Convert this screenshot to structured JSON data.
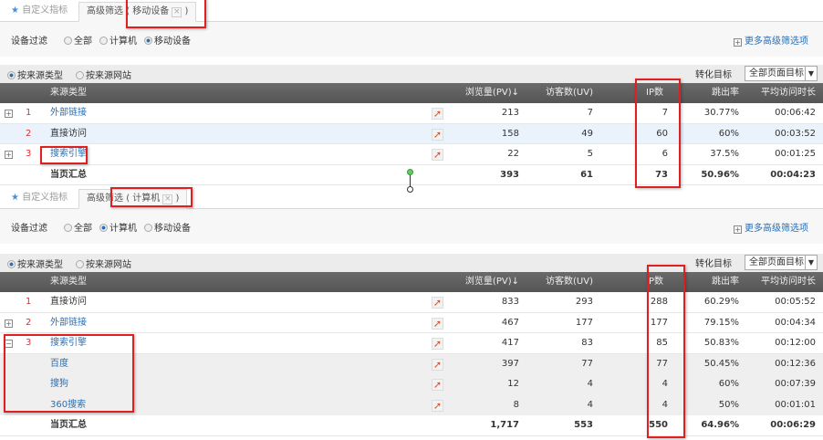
{
  "panels": [
    {
      "tabs": {
        "custom": "自定义指标",
        "advanced": "高级筛选",
        "paren_open": "(",
        "chip": "移动设备",
        "paren_close": ")"
      },
      "filter": {
        "label": "设备过滤",
        "options": [
          "全部",
          "计算机",
          "移动设备"
        ],
        "selected": 2,
        "more": "更多高级筛选项"
      },
      "source": {
        "options": [
          "按来源类型",
          "按来源网站"
        ],
        "selected": 0,
        "goal_label": "转化目标",
        "goal_value": "全部页面目标"
      },
      "headers": {
        "name": "来源类型",
        "pv": "浏览量(PV)",
        "uv": "访客数(UV)",
        "ip": "IP数",
        "bounce": "跳出率",
        "time": "平均访问时长"
      },
      "rows": [
        {
          "exp": "+",
          "rank": "1",
          "name": "外部链接",
          "link": true,
          "pv": "213",
          "uv": "7",
          "ip": "7",
          "bounce": "30.77%",
          "time": "00:06:42"
        },
        {
          "exp": "",
          "rank": "2",
          "name": "直接访问",
          "link": false,
          "pv": "158",
          "uv": "49",
          "ip": "60",
          "bounce": "60%",
          "time": "00:03:52",
          "hl": true
        },
        {
          "exp": "+",
          "rank": "3",
          "name": "搜索引擎",
          "link": true,
          "pv": "22",
          "uv": "5",
          "ip": "6",
          "bounce": "37.5%",
          "time": "00:01:25"
        }
      ],
      "total": {
        "name": "当页汇总",
        "pv": "393",
        "uv": "61",
        "ip": "73",
        "bounce": "50.96%",
        "time": "00:04:23"
      }
    },
    {
      "tabs": {
        "custom": "自定义指标",
        "advanced": "高级筛选",
        "paren_open": "(",
        "chip": "计算机",
        "paren_close": ")"
      },
      "filter": {
        "label": "设备过滤",
        "options": [
          "全部",
          "计算机",
          "移动设备"
        ],
        "selected": 1,
        "more": "更多高级筛选项"
      },
      "source": {
        "options": [
          "按来源类型",
          "按来源网站"
        ],
        "selected": 0,
        "goal_label": "转化目标",
        "goal_value": "全部页面目标"
      },
      "headers": {
        "name": "来源类型",
        "pv": "浏览量(PV)",
        "uv": "访客数(UV)",
        "ip": "IP数",
        "bounce": "跳出率",
        "time": "平均访问时长"
      },
      "rows": [
        {
          "exp": "",
          "rank": "1",
          "name": "直接访问",
          "link": false,
          "pv": "833",
          "uv": "293",
          "ip": "288",
          "bounce": "60.29%",
          "time": "00:05:52"
        },
        {
          "exp": "+",
          "rank": "2",
          "name": "外部链接",
          "link": true,
          "pv": "467",
          "uv": "177",
          "ip": "177",
          "bounce": "79.15%",
          "time": "00:04:34"
        },
        {
          "exp": "−",
          "rank": "3",
          "name": "搜索引擎",
          "link": true,
          "pv": "417",
          "uv": "83",
          "ip": "85",
          "bounce": "50.83%",
          "time": "00:12:00"
        },
        {
          "exp": "",
          "rank": "",
          "name": "百度",
          "link": true,
          "pv": "397",
          "uv": "77",
          "ip": "77",
          "bounce": "50.45%",
          "time": "00:12:36",
          "sub": true
        },
        {
          "exp": "",
          "rank": "",
          "name": "搜狗",
          "link": true,
          "pv": "12",
          "uv": "4",
          "ip": "4",
          "bounce": "60%",
          "time": "00:07:39",
          "sub": true
        },
        {
          "exp": "",
          "rank": "",
          "name": "360搜索",
          "link": true,
          "pv": "8",
          "uv": "4",
          "ip": "4",
          "bounce": "50%",
          "time": "00:01:01",
          "sub": true
        }
      ],
      "total": {
        "name": "当页汇总",
        "pv": "1,717",
        "uv": "553",
        "ip": "550",
        "bounce": "64.96%",
        "time": "00:06:29"
      }
    }
  ],
  "icons": {
    "star": "star-icon",
    "expand": "plus-box-icon",
    "trend": "trend-chart-icon",
    "sort": "sort-down-arrow-icon",
    "dropdown": "chevron-down-icon"
  },
  "colors": {
    "link": "#2a6fb5",
    "rank": "#e03030",
    "header": "#5f5f5f",
    "highlight": "#e02020"
  }
}
